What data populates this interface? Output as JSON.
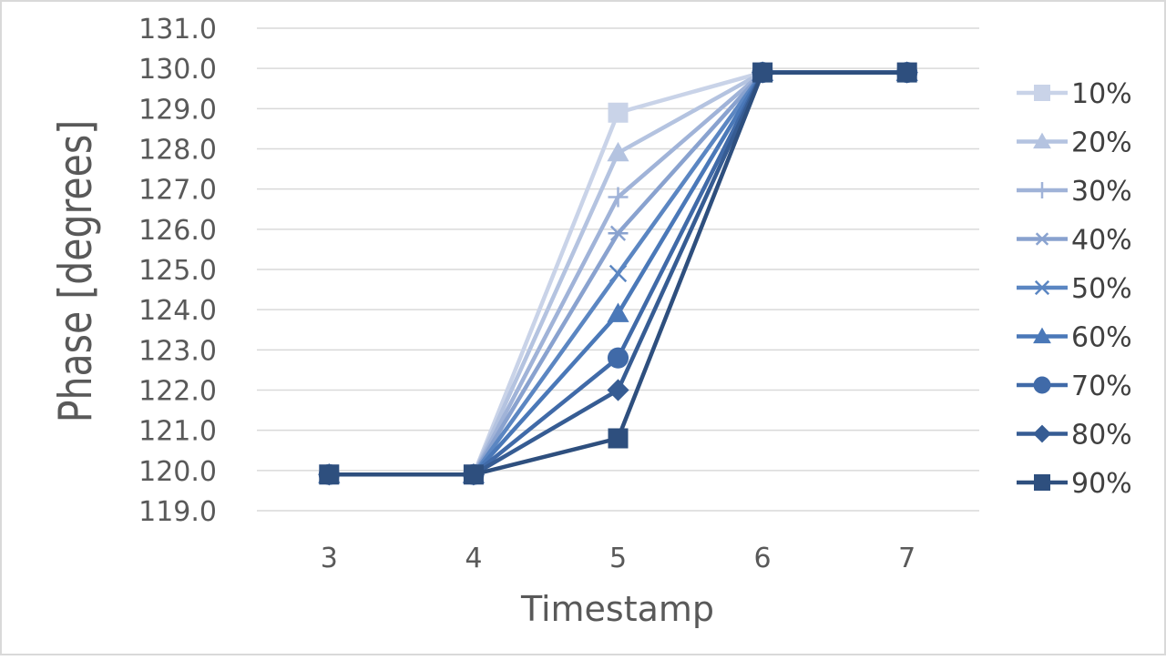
{
  "chart_data": {
    "type": "line",
    "xlabel": "Timestamp",
    "ylabel": "Phase [degrees]",
    "categories": [
      "3",
      "4",
      "5",
      "6",
      "7"
    ],
    "ylim": [
      119.0,
      131.0
    ],
    "yticks": [
      "119.0",
      "120.0",
      "121.0",
      "122.0",
      "123.0",
      "124.0",
      "125.0",
      "126.0",
      "127.0",
      "128.0",
      "129.0",
      "130.0",
      "131.0"
    ],
    "grid": true,
    "legend_position": "right",
    "series": [
      {
        "name": "10%",
        "marker": "square",
        "color": "#c9d3e8",
        "values": [
          119.9,
          119.9,
          128.9,
          129.9,
          129.9
        ]
      },
      {
        "name": "20%",
        "marker": "triangle",
        "color": "#b4c3e0",
        "values": [
          119.9,
          119.9,
          127.9,
          129.9,
          129.9
        ]
      },
      {
        "name": "30%",
        "marker": "plus",
        "color": "#a0b3d8",
        "values": [
          119.9,
          119.9,
          126.8,
          129.9,
          129.9
        ]
      },
      {
        "name": "40%",
        "marker": "asterisk",
        "color": "#89a2cf",
        "values": [
          119.9,
          119.9,
          125.9,
          129.9,
          129.9
        ]
      },
      {
        "name": "50%",
        "marker": "x",
        "color": "#5b86c2",
        "values": [
          119.9,
          119.9,
          124.9,
          129.9,
          129.9
        ]
      },
      {
        "name": "60%",
        "marker": "triangle",
        "color": "#4a78b8",
        "values": [
          119.9,
          119.9,
          123.9,
          129.9,
          129.9
        ]
      },
      {
        "name": "70%",
        "marker": "circle",
        "color": "#406aa8",
        "values": [
          119.9,
          119.9,
          122.8,
          129.9,
          129.9
        ]
      },
      {
        "name": "80%",
        "marker": "diamond",
        "color": "#365c93",
        "values": [
          119.9,
          119.9,
          122.0,
          129.9,
          129.9
        ]
      },
      {
        "name": "90%",
        "marker": "square",
        "color": "#2e4f7e",
        "values": [
          119.9,
          119.9,
          120.8,
          129.9,
          129.9
        ]
      }
    ]
  }
}
